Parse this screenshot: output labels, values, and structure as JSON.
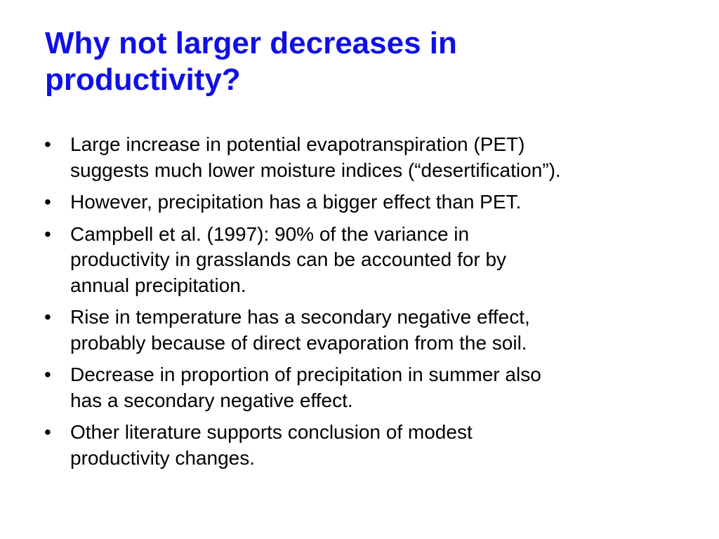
{
  "slide": {
    "title_lines": [
      "Why not larger decreases in",
      "productivity?"
    ],
    "bullet_glyph": "•",
    "bullets": [
      {
        "lines": [
          "Large increase in potential evapotranspiration (PET)",
          "suggests much lower moisture indices (“desertification”)."
        ]
      },
      {
        "lines": [
          "However, precipitation has a bigger effect than PET."
        ]
      },
      {
        "lines": [
          "Campbell et al. (1997):  90% of the variance in",
          "productivity in grasslands can be accounted for by",
          "annual precipitation."
        ]
      },
      {
        "lines": [
          "Rise in temperature has a secondary negative effect,",
          "probably because of direct evaporation from the soil."
        ]
      },
      {
        "lines": [
          "Decrease in proportion of precipitation in summer also",
          "has a secondary negative effect."
        ]
      },
      {
        "lines": [
          "Other literature supports conclusion of modest",
          "productivity changes."
        ]
      }
    ],
    "colors": {
      "title": "#1010e6",
      "body_text": "#000000",
      "background": "#ffffff"
    }
  }
}
